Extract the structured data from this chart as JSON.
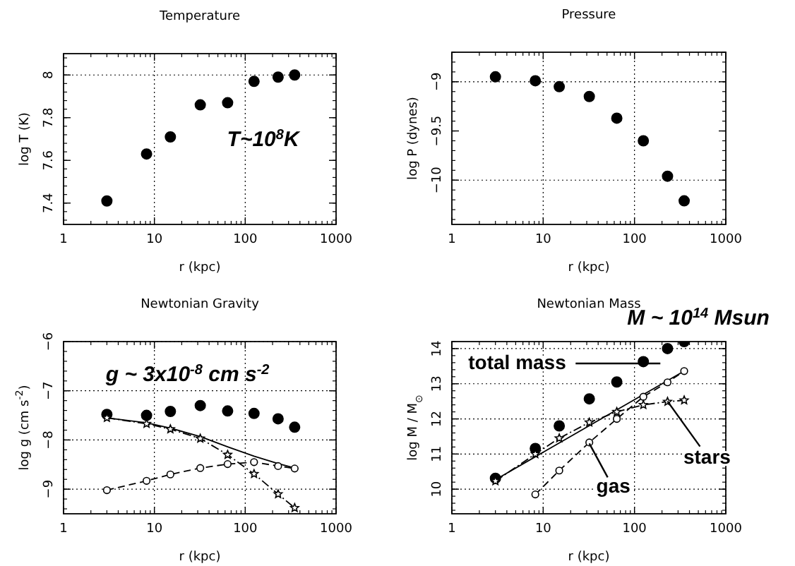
{
  "chart_data": [
    {
      "type": "scatter",
      "title": "Temperature",
      "xlabel": "r (kpc)",
      "ylabel": "log T (K)",
      "log": "x",
      "xlim": [
        1,
        1000
      ],
      "xticks": [
        1,
        10,
        100,
        1000
      ],
      "ylim": [
        7.3,
        8.1
      ],
      "yticks": [
        7.4,
        7.6,
        7.8,
        8
      ],
      "marker": "circle",
      "x": [
        3,
        8.2,
        15,
        32,
        64,
        125,
        230,
        350
      ],
      "series": [
        {
          "type": "scatter",
          "color": "#000000",
          "values": [
            7.41,
            7.63,
            7.71,
            7.86,
            7.87,
            7.97,
            7.99,
            8.0
          ]
        }
      ],
      "ref_lines": [
        {
          "axis": "y",
          "value": 8,
          "line_style": "dotted"
        },
        {
          "axis": "x",
          "value": 10,
          "line_style": "dotted"
        },
        {
          "axis": "x",
          "value": 100,
          "line_style": "dotted"
        }
      ],
      "annotations": [
        "T~10$^{8}$K"
      ]
    },
    {
      "type": "scatter",
      "title": "Pressure",
      "xlabel": "r (kpc)",
      "ylabel": "log P (dynes)",
      "log": "x",
      "xlim": [
        1,
        1000
      ],
      "xticks": [
        1,
        10,
        100,
        1000
      ],
      "ylim": [
        -10.45,
        -8.7
      ],
      "yticks": [
        {
          "value": -10,
          "label": "−10"
        },
        {
          "value": -9.5,
          "label": "−9.5"
        },
        {
          "value": -9,
          "label": "−9"
        }
      ],
      "marker": "circle",
      "x": [
        3,
        8.2,
        15,
        32,
        64,
        125,
        230,
        350
      ],
      "series": [
        {
          "type": "scatter",
          "color": "#000000",
          "values": [
            -8.95,
            -8.99,
            -9.05,
            -9.15,
            -9.37,
            -9.6,
            -9.96,
            -10.21
          ]
        }
      ],
      "ref_lines": [
        {
          "axis": "y",
          "value": -9,
          "line_style": "dotted"
        },
        {
          "axis": "y",
          "value": -10,
          "line_style": "dotted"
        },
        {
          "axis": "x",
          "value": 10,
          "line_style": "dotted"
        },
        {
          "axis": "x",
          "value": 100,
          "line_style": "dotted"
        }
      ]
    },
    {
      "type": "scatter",
      "title": "Newtonian Gravity",
      "xlabel": "r (kpc)",
      "ylabel": "log g (cm s$^{-2}$)",
      "log": "x",
      "xlim": [
        1,
        1000
      ],
      "xticks": [
        1,
        10,
        100,
        1000
      ],
      "ylim": [
        -9.5,
        -6
      ],
      "yticks": [
        {
          "value": -9,
          "label": "−9"
        },
        {
          "value": -8,
          "label": "−8"
        },
        {
          "value": -7,
          "label": "−7"
        },
        {
          "value": -6,
          "label": "−6"
        }
      ],
      "grid": true,
      "x": [
        3,
        8.2,
        15,
        32,
        64,
        125,
        230,
        350
      ],
      "series": [
        {
          "type": "scatter",
          "marker": "circle",
          "color": "#000000",
          "values": [
            -7.48,
            -7.5,
            -7.42,
            -7.3,
            -7.41,
            -7.46,
            -7.57,
            -7.74
          ]
        },
        {
          "type": "line",
          "line_style": "solid",
          "color": "#000000",
          "values": [
            -7.55,
            -7.65,
            -7.76,
            -7.93,
            -8.14,
            -8.33,
            -8.48,
            -8.57
          ]
        },
        {
          "type": "line",
          "marker": "star",
          "line_style": "dotted",
          "color": "#000000",
          "values": [
            -7.55,
            -7.67,
            -7.78,
            -7.97,
            -8.3,
            -8.69,
            -9.1,
            -9.38
          ]
        },
        {
          "type": "line",
          "marker": "circle",
          "line_style": "dashed",
          "color": "#000000",
          "values": [
            -9.02,
            -8.83,
            -8.7,
            -8.57,
            -8.49,
            -8.45,
            -8.53,
            -8.58
          ]
        }
      ],
      "annotations": [
        "g ~ 3x10$^{-8}$ cm s$^{-2}$"
      ]
    },
    {
      "type": "scatter",
      "title": "Newtonian Mass",
      "xlabel": "r (kpc)",
      "ylabel": "log M / M$_{⊙}$",
      "log": "x",
      "xlim": [
        1,
        1000
      ],
      "xticks": [
        1,
        10,
        100,
        1000
      ],
      "ylim": [
        9.3,
        14.2
      ],
      "yticks": [
        10,
        11,
        12,
        13,
        14
      ],
      "grid": true,
      "x": [
        3,
        8.2,
        15,
        32,
        64,
        125,
        230,
        350
      ],
      "series": [
        {
          "type": "scatter",
          "marker": "circle",
          "color": "#000000",
          "values": [
            10.31,
            11.16,
            11.8,
            12.57,
            13.05,
            13.63,
            14.0,
            14.2
          ]
        },
        {
          "type": "line",
          "line_style": "solid",
          "color": "#000000",
          "x": [
            3,
            350
          ],
          "values": [
            10.27,
            13.36
          ]
        },
        {
          "type": "line",
          "marker": "circle",
          "line_style": "dashed",
          "color": "#000000",
          "values": [
            null,
            9.85,
            10.53,
            11.33,
            12.0,
            12.63,
            13.04,
            13.36
          ]
        },
        {
          "type": "line",
          "marker": "star",
          "line_style": "dotted",
          "color": "#000000",
          "values": [
            10.23,
            11.0,
            11.45,
            11.9,
            12.2,
            12.4,
            12.49,
            12.53
          ]
        }
      ],
      "annotations": [
        "M ~ 10$^{14}$ Msun",
        "total mass",
        {
          "text": "gas",
          "x": 32,
          "y": 11.3
        },
        {
          "text": "stars",
          "x": 230,
          "y": 12.5
        }
      ]
    }
  ]
}
